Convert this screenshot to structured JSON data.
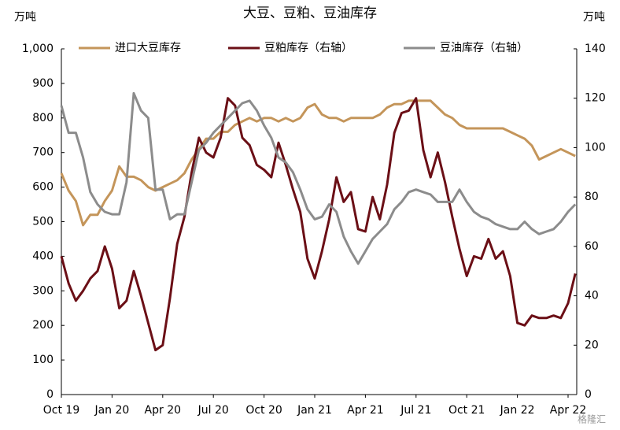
{
  "chart_data": {
    "type": "line",
    "title": "大豆、豆粕、豆油库存",
    "y_unit": "万吨",
    "y2_unit": "万吨",
    "watermark": "格隆汇",
    "categories": [
      "Oct 19",
      null,
      null,
      null,
      null,
      null,
      null,
      "Jan 20",
      null,
      null,
      null,
      null,
      null,
      null,
      "Apr 20",
      null,
      null,
      null,
      null,
      null,
      null,
      "Jul 20",
      null,
      null,
      null,
      null,
      null,
      null,
      "Oct 20",
      null,
      null,
      null,
      null,
      null,
      null,
      "Jan 21",
      null,
      null,
      null,
      null,
      null,
      null,
      "Apr 21",
      null,
      null,
      null,
      null,
      null,
      null,
      "Jul 21",
      null,
      null,
      null,
      null,
      null,
      null,
      "Oct 21",
      null,
      null,
      null,
      null,
      null,
      null,
      "Jan 22",
      null,
      null,
      null,
      null,
      null,
      null,
      "Apr 22",
      null
    ],
    "ylim": [
      0,
      1000
    ],
    "yticks": [
      0,
      100,
      200,
      300,
      400,
      500,
      600,
      700,
      800,
      900,
      {
        "value": 1000,
        "label": "1,000"
      }
    ],
    "y2lim": [
      0,
      140
    ],
    "y2ticks": [
      0,
      20,
      40,
      60,
      80,
      100,
      120,
      140
    ],
    "legend": "top",
    "series": [
      {
        "name": "进口大豆库存",
        "color": "#c4955a",
        "values": [
          640,
          590,
          560,
          490,
          520,
          520,
          560,
          590,
          660,
          630,
          630,
          620,
          600,
          590,
          600,
          610,
          620,
          640,
          680,
          710,
          740,
          740,
          760,
          760,
          780,
          790,
          800,
          790,
          800,
          800,
          790,
          800,
          790,
          800,
          830,
          840,
          810,
          800,
          800,
          790,
          800,
          800,
          800,
          800,
          810,
          830,
          840,
          840,
          850,
          850,
          850,
          850,
          830,
          810,
          800,
          780,
          770,
          770,
          770,
          770,
          770,
          770,
          760,
          750,
          740,
          720,
          680,
          690,
          700,
          710,
          700,
          690
        ]
      },
      {
        "name": "豆粕库存（右轴）",
        "color": "#6b0f16",
        "axis": "y2",
        "values": [
          56,
          45,
          38,
          42,
          47,
          50,
          60,
          51,
          35,
          38,
          50,
          40,
          29,
          18,
          20,
          39,
          61,
          72,
          90,
          104,
          98,
          96,
          104,
          120,
          117,
          104,
          101,
          93,
          91,
          88,
          102,
          93,
          83,
          74,
          55,
          47,
          58,
          71,
          88,
          78,
          82,
          67,
          66,
          80,
          71,
          85,
          106,
          114,
          115,
          120,
          99,
          88,
          98,
          86,
          72,
          59,
          48,
          56,
          55,
          63,
          55,
          58,
          48,
          29,
          28,
          32,
          31,
          31,
          32,
          31,
          37,
          49
        ]
      },
      {
        "name": "豆油库存（右轴）",
        "color": "#8c8c8c",
        "axis": "y2",
        "values": [
          117,
          106,
          106,
          96,
          82,
          77,
          74,
          73,
          73,
          86,
          122,
          115,
          112,
          83,
          83,
          71,
          73,
          73,
          86,
          99,
          102,
          106,
          109,
          112,
          115,
          118,
          119,
          115,
          109,
          104,
          96,
          94,
          90,
          83,
          75,
          71,
          72,
          77,
          74,
          64,
          58,
          53,
          58,
          63,
          66,
          69,
          75,
          78,
          82,
          83,
          82,
          81,
          78,
          78,
          78,
          83,
          78,
          74,
          72,
          71,
          69,
          68,
          67,
          67,
          70,
          67,
          65,
          66,
          67,
          70,
          74,
          77
        ]
      }
    ]
  }
}
